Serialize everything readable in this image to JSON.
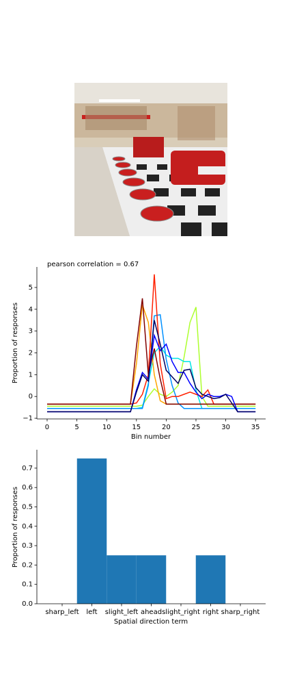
{
  "chart_data": [
    {
      "type": "line",
      "title": "pearson correlation = 0.67",
      "x_label": "Bin number",
      "y_label": "Proportion of responses",
      "x": [
        0,
        1,
        2,
        3,
        4,
        5,
        6,
        7,
        8,
        9,
        10,
        11,
        12,
        13,
        14,
        15,
        16,
        17,
        18,
        19,
        20,
        21,
        22,
        23,
        24,
        25,
        26,
        27,
        28,
        29,
        30,
        31,
        32,
        33,
        34,
        35
      ],
      "xlim": [
        -1.72,
        36.7
      ],
      "ylim": [
        -1.03,
        5.94
      ],
      "xticks": [
        0,
        5,
        10,
        15,
        20,
        25,
        30,
        35
      ],
      "yticks": [
        {
          "value": -1,
          "label": "−1"
        },
        0,
        1,
        2,
        3,
        4,
        5
      ],
      "series": [
        {
          "color": "#adff2f",
          "values": [
            -0.45,
            -0.45,
            -0.45,
            -0.45,
            -0.45,
            -0.45,
            -0.45,
            -0.45,
            -0.45,
            -0.45,
            -0.45,
            -0.45,
            -0.45,
            -0.45,
            -0.45,
            -0.45,
            -0.4,
            0.0,
            0.35,
            0.1,
            0.0,
            0.2,
            0.5,
            1.8,
            3.4,
            4.1,
            0.0,
            -0.45,
            -0.45,
            -0.45,
            -0.45,
            -0.45,
            -0.45,
            -0.45,
            -0.45,
            -0.45
          ]
        },
        {
          "color": "#00e5e5",
          "values": [
            -0.55,
            -0.55,
            -0.55,
            -0.55,
            -0.55,
            -0.55,
            -0.55,
            -0.55,
            -0.55,
            -0.55,
            -0.55,
            -0.55,
            -0.55,
            -0.55,
            -0.55,
            -0.55,
            -0.5,
            0.6,
            2.0,
            2.3,
            1.9,
            1.75,
            1.75,
            1.6,
            1.6,
            0.3,
            -0.55,
            -0.55,
            -0.55,
            -0.55,
            -0.55,
            -0.55,
            -0.55,
            -0.55,
            -0.55,
            -0.55
          ]
        },
        {
          "color": "#0090ff",
          "values": [
            -0.55,
            -0.55,
            -0.55,
            -0.55,
            -0.55,
            -0.55,
            -0.55,
            -0.55,
            -0.55,
            -0.55,
            -0.55,
            -0.55,
            -0.55,
            -0.55,
            -0.55,
            -0.55,
            -0.55,
            0.5,
            3.7,
            3.75,
            1.7,
            0.5,
            -0.3,
            -0.55,
            -0.55,
            -0.55,
            -0.55,
            -0.55,
            -0.55,
            -0.55,
            -0.55,
            -0.55,
            -0.55,
            -0.55,
            -0.55,
            -0.55
          ]
        },
        {
          "color": "#ffa500",
          "values": [
            -0.35,
            -0.35,
            -0.35,
            -0.35,
            -0.35,
            -0.35,
            -0.35,
            -0.35,
            -0.35,
            -0.35,
            -0.35,
            -0.35,
            -0.35,
            -0.35,
            -0.35,
            1.5,
            4.2,
            3.4,
            1.0,
            -0.2,
            -0.35,
            -0.35,
            -0.35,
            -0.35,
            -0.35,
            -0.35,
            -0.35,
            -0.35,
            -0.35,
            -0.35,
            -0.35,
            -0.35,
            -0.35,
            -0.35,
            -0.35,
            -0.35
          ]
        },
        {
          "color": "#ff2000",
          "values": [
            -0.35,
            -0.35,
            -0.35,
            -0.35,
            -0.35,
            -0.35,
            -0.35,
            -0.35,
            -0.35,
            -0.35,
            -0.35,
            -0.35,
            -0.35,
            -0.35,
            -0.35,
            -0.3,
            0.1,
            1.0,
            5.6,
            1.5,
            -0.1,
            0.0,
            0.0,
            0.1,
            0.2,
            0.1,
            0.0,
            0.3,
            -0.35,
            -0.35,
            -0.35,
            -0.35,
            -0.35,
            -0.35,
            -0.35,
            -0.35
          ]
        },
        {
          "color": "#800000",
          "values": [
            -0.35,
            -0.35,
            -0.35,
            -0.35,
            -0.35,
            -0.35,
            -0.35,
            -0.35,
            -0.35,
            -0.35,
            -0.35,
            -0.35,
            -0.35,
            -0.35,
            -0.35,
            2.3,
            4.5,
            1.0,
            2.2,
            0.8,
            -0.35,
            -0.35,
            -0.35,
            -0.35,
            -0.35,
            -0.35,
            -0.35,
            -0.35,
            -0.35,
            -0.35,
            -0.35,
            -0.35,
            -0.35,
            -0.35,
            -0.35,
            -0.35
          ]
        },
        {
          "color": "#0000ff",
          "values": [
            -0.7,
            -0.7,
            -0.7,
            -0.7,
            -0.7,
            -0.7,
            -0.7,
            -0.7,
            -0.7,
            -0.7,
            -0.7,
            -0.7,
            -0.7,
            -0.7,
            -0.7,
            0.3,
            1.1,
            0.8,
            2.8,
            2.1,
            2.4,
            1.6,
            1.1,
            1.1,
            0.6,
            0.2,
            -0.1,
            0.1,
            0.0,
            0.0,
            0.1,
            0.0,
            -0.7,
            -0.7,
            -0.7,
            -0.7
          ]
        },
        {
          "color": "#000060",
          "values": [
            -0.7,
            -0.7,
            -0.7,
            -0.7,
            -0.7,
            -0.7,
            -0.7,
            -0.7,
            -0.7,
            -0.7,
            -0.7,
            -0.7,
            -0.7,
            -0.7,
            -0.7,
            0.2,
            1.0,
            0.7,
            3.5,
            2.4,
            1.2,
            0.9,
            0.6,
            1.2,
            1.25,
            0.4,
            0.1,
            0.0,
            -0.1,
            -0.05,
            0.1,
            -0.3,
            -0.7,
            -0.7,
            -0.7,
            -0.7
          ]
        }
      ]
    },
    {
      "type": "bar",
      "x_label": "Spatial direction term",
      "y_label": "Proportion of responses",
      "categories": [
        "sharp_left",
        "left",
        "slight_left",
        "ahead",
        "slight_right",
        "right",
        "sharp_right"
      ],
      "values": [
        0,
        0.75,
        0.25,
        0.25,
        0,
        0.25,
        0
      ],
      "color": "#1f77b4",
      "ylim": [
        0,
        0.795
      ],
      "yticks": [
        {
          "value": 0,
          "label": "0.0"
        },
        0.1,
        0.2,
        0.3,
        0.4,
        0.5,
        0.6,
        0.7
      ]
    }
  ]
}
